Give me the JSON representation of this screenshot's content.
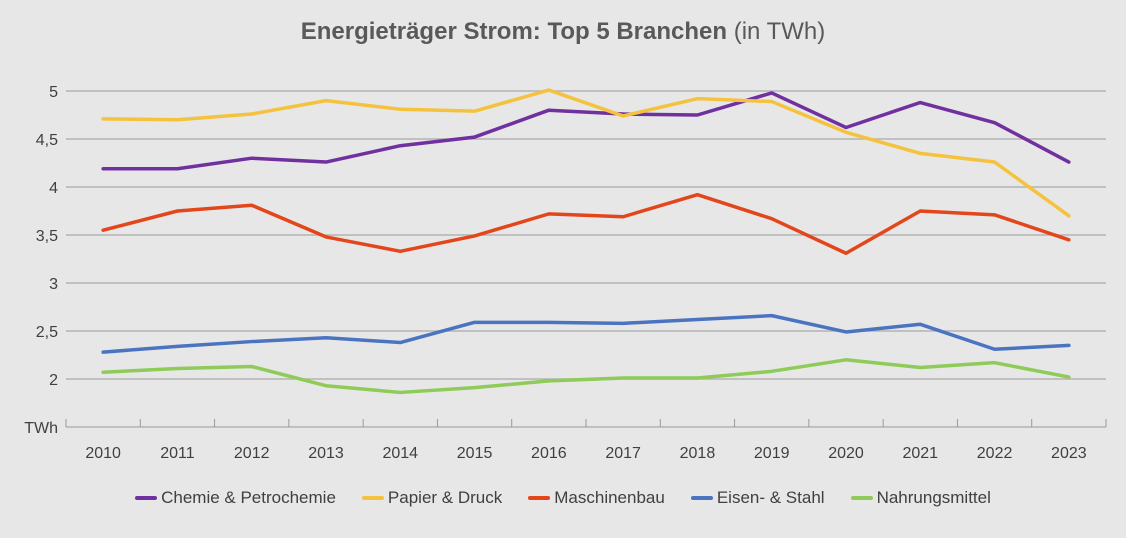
{
  "chart_data": {
    "type": "line",
    "title": "Energieträger Strom: Top 5 Branchen",
    "title_suffix": "(in TWh)",
    "ylabel": "TWh",
    "ylim": [
      1.5,
      5.3
    ],
    "yticks": [
      "TWh",
      "2",
      "2,5",
      "3",
      "3,5",
      "4",
      "4,5",
      "5"
    ],
    "ytick_values": [
      1.5,
      2,
      2.5,
      3,
      3.5,
      4,
      4.5,
      5
    ],
    "grid": true,
    "legend": "bottom",
    "categories": [
      "2010",
      "2011",
      "2012",
      "2013",
      "2014",
      "2015",
      "2016",
      "2017",
      "2018",
      "2019",
      "2020",
      "2021",
      "2022",
      "2023"
    ],
    "series": [
      {
        "name": "Chemie & Petrochemie",
        "color": "#7030a0",
        "values": [
          4.19,
          4.19,
          4.3,
          4.26,
          4.43,
          4.52,
          4.8,
          4.76,
          4.75,
          4.98,
          4.62,
          4.88,
          4.67,
          4.26
        ]
      },
      {
        "name": "Papier & Druck",
        "color": "#f4c23c",
        "values": [
          4.71,
          4.7,
          4.76,
          4.9,
          4.81,
          4.79,
          5.01,
          4.74,
          4.92,
          4.89,
          4.57,
          4.35,
          4.26,
          3.7
        ]
      },
      {
        "name": "Maschinenbau",
        "color": "#e4461b",
        "values": [
          3.55,
          3.75,
          3.81,
          3.48,
          3.33,
          3.49,
          3.72,
          3.69,
          3.92,
          3.67,
          3.31,
          3.75,
          3.71,
          3.45
        ]
      },
      {
        "name": "Eisen- & Stahl",
        "color": "#4a74c0",
        "values": [
          2.28,
          2.34,
          2.39,
          2.43,
          2.38,
          2.59,
          2.59,
          2.58,
          2.62,
          2.66,
          2.49,
          2.57,
          2.31,
          2.35
        ]
      },
      {
        "name": "Nahrungsmittel",
        "color": "#8ecb58",
        "values": [
          2.07,
          2.11,
          2.13,
          1.93,
          1.86,
          1.91,
          1.98,
          2.01,
          2.01,
          2.08,
          2.2,
          2.12,
          2.17,
          2.02
        ]
      }
    ]
  }
}
